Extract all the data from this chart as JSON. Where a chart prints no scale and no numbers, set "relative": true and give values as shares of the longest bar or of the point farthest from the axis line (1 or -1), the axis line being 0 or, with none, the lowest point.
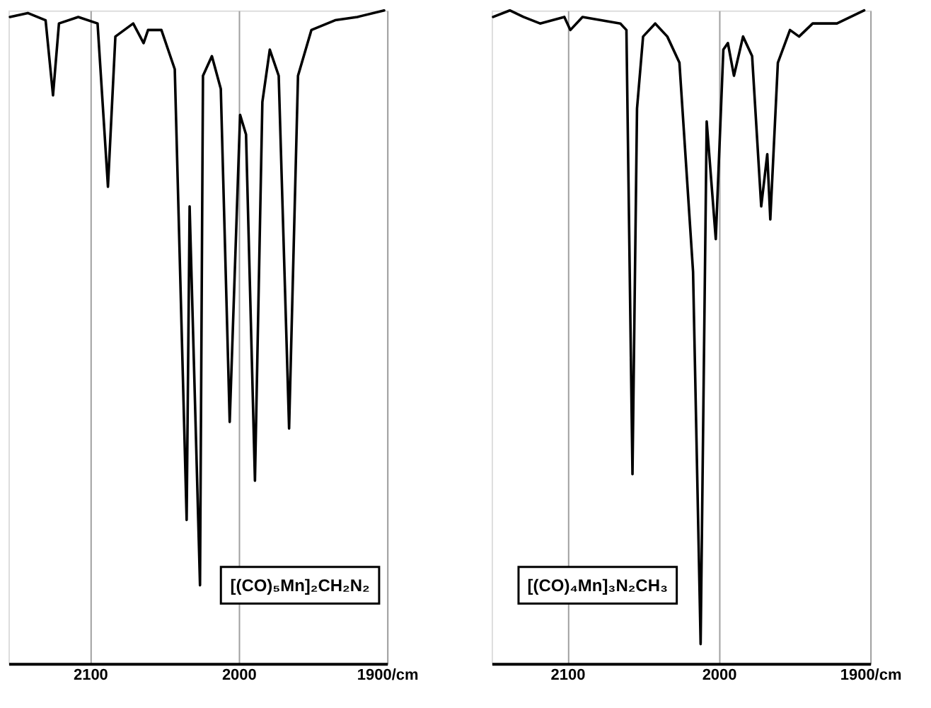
{
  "chart_data": [
    {
      "type": "line",
      "relative": true,
      "grid": "x",
      "tick_labels": "x",
      "xlim": [
        2155,
        1900
      ],
      "xticks": [
        2100,
        2000,
        {
          "value": 1900,
          "label": "1900/cm"
        }
      ],
      "annotations": [
        "[(CO)₅Mn]₂CH₂N₂"
      ],
      "series": [
        {
          "color": "#000000",
          "x": [
            2154,
            2142,
            2130,
            2125,
            2121,
            2108,
            2095,
            2088,
            2083,
            2071,
            2064,
            2061,
            2052,
            2043,
            2035,
            2033,
            2026,
            2024,
            2018,
            2012,
            2006,
            1999,
            1995,
            1989,
            1984,
            1979,
            1973,
            1966,
            1960,
            1951,
            1935,
            1920,
            1902
          ],
          "values": [
            0.99,
            0.996,
            0.985,
            0.87,
            0.98,
            0.99,
            0.98,
            0.73,
            0.96,
            0.98,
            0.95,
            0.97,
            0.97,
            0.91,
            0.22,
            0.7,
            0.12,
            0.9,
            0.93,
            0.88,
            0.37,
            0.84,
            0.81,
            0.28,
            0.86,
            0.94,
            0.9,
            0.36,
            0.9,
            0.97,
            0.985,
            0.99,
            1.0
          ]
        }
      ]
    },
    {
      "type": "line",
      "relative": true,
      "grid": "x",
      "tick_labels": "x",
      "xlim": [
        2150,
        1900
      ],
      "xticks": [
        2100,
        2000,
        {
          "value": 1900,
          "label": "1900/cm"
        }
      ],
      "annotations": [
        "[(CO)₄Mn]₃N₂CH₃"
      ],
      "series": [
        {
          "color": "#000000",
          "x": [
            2149,
            2138,
            2129,
            2118,
            2102,
            2098,
            2090,
            2065,
            2061,
            2057,
            2054,
            2050,
            2042,
            2034,
            2026,
            2017,
            2012,
            2008,
            2002,
            1997,
            1994,
            1990,
            1984,
            1978,
            1972,
            1968,
            1966,
            1961,
            1953,
            1947,
            1938,
            1922,
            1904
          ],
          "values": [
            0.99,
            1.0,
            0.99,
            0.98,
            0.99,
            0.97,
            0.99,
            0.98,
            0.97,
            0.29,
            0.85,
            0.96,
            0.98,
            0.96,
            0.92,
            0.6,
            0.03,
            0.83,
            0.65,
            0.94,
            0.95,
            0.9,
            0.96,
            0.93,
            0.7,
            0.78,
            0.68,
            0.92,
            0.97,
            0.96,
            0.98,
            0.98,
            1.0
          ]
        }
      ]
    }
  ]
}
